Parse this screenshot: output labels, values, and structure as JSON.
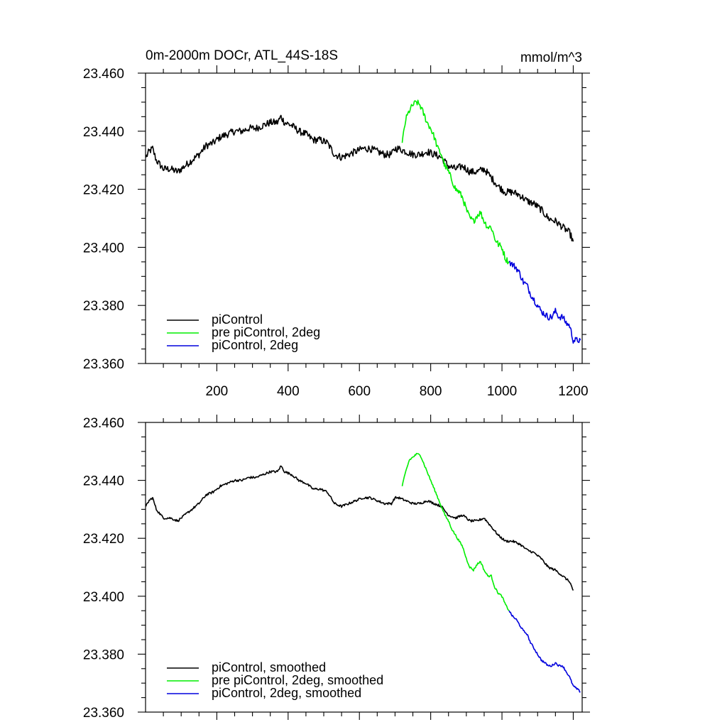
{
  "units": "mmol/m^3",
  "chart_data": [
    {
      "type": "line",
      "title": "0m-2000m DOCr, ATL_44S-18S",
      "units_label": "mmol/m^3",
      "xlabel": "",
      "ylabel": "",
      "xlim": [
        0,
        1225
      ],
      "ylim": [
        23.36,
        23.46
      ],
      "x_ticks": [
        200,
        400,
        600,
        800,
        1000,
        1200
      ],
      "x_tick_labels": [
        "200",
        "400",
        "600",
        "800",
        "1000",
        "1200"
      ],
      "y_ticks": [
        23.36,
        23.38,
        23.4,
        23.42,
        23.44,
        23.46
      ],
      "y_tick_labels": [
        "23.360",
        "23.380",
        "23.400",
        "23.420",
        "23.440",
        "23.460"
      ],
      "legend_position": "bottom-left",
      "series": [
        {
          "name": "piControl",
          "color": "#000000",
          "noise": 0.0025,
          "x": [
            1,
            10,
            20,
            30,
            50,
            70,
            90,
            110,
            130,
            150,
            170,
            190,
            210,
            230,
            250,
            270,
            290,
            310,
            330,
            350,
            370,
            380,
            390,
            410,
            430,
            450,
            470,
            490,
            510,
            530,
            550,
            570,
            590,
            610,
            630,
            650,
            670,
            690,
            700,
            710,
            730,
            750,
            770,
            790,
            810,
            830,
            850,
            870,
            890,
            910,
            930,
            950,
            970,
            990,
            1010,
            1030,
            1050,
            1070,
            1090,
            1110,
            1130,
            1150,
            1170,
            1190,
            1200
          ],
          "y": [
            23.431,
            23.433,
            23.434,
            23.43,
            23.427,
            23.427,
            23.426,
            23.428,
            23.43,
            23.432,
            23.435,
            23.436,
            23.438,
            23.439,
            23.44,
            23.44,
            23.441,
            23.441,
            23.442,
            23.443,
            23.443,
            23.445,
            23.443,
            23.442,
            23.44,
            23.439,
            23.437,
            23.437,
            23.436,
            23.432,
            23.431,
            23.432,
            23.433,
            23.434,
            23.434,
            23.433,
            23.432,
            23.432,
            23.434,
            23.434,
            23.433,
            23.432,
            23.432,
            23.433,
            23.432,
            23.431,
            23.428,
            23.427,
            23.428,
            23.426,
            23.426,
            23.427,
            23.424,
            23.421,
            23.419,
            23.419,
            23.418,
            23.416,
            23.415,
            23.413,
            23.41,
            23.409,
            23.407,
            23.405,
            23.402
          ]
        },
        {
          "name": "pre piControl, 2deg",
          "color": "#00ee00",
          "noise": 0.0022,
          "x": [
            720,
            730,
            740,
            750,
            760,
            770,
            780,
            790,
            800,
            810,
            820,
            830,
            840,
            850,
            860,
            870,
            880,
            890,
            900,
            910,
            920,
            930,
            940,
            950,
            960,
            970,
            980,
            990,
            1000,
            1010,
            1020
          ],
          "y": [
            23.436,
            23.444,
            23.447,
            23.449,
            23.45,
            23.449,
            23.446,
            23.443,
            23.441,
            23.438,
            23.434,
            23.432,
            23.428,
            23.426,
            23.423,
            23.42,
            23.419,
            23.417,
            23.413,
            23.41,
            23.409,
            23.411,
            23.412,
            23.409,
            23.407,
            23.407,
            23.403,
            23.401,
            23.4,
            23.396,
            23.395
          ]
        },
        {
          "name": "piControl, 2deg",
          "color": "#0000dd",
          "noise": 0.0022,
          "x": [
            1020,
            1030,
            1040,
            1050,
            1060,
            1070,
            1080,
            1090,
            1100,
            1110,
            1120,
            1130,
            1140,
            1150,
            1160,
            1170,
            1180,
            1190,
            1200,
            1210,
            1220
          ],
          "y": [
            23.395,
            23.394,
            23.393,
            23.391,
            23.388,
            23.387,
            23.384,
            23.382,
            23.38,
            23.378,
            23.377,
            23.376,
            23.376,
            23.378,
            23.376,
            23.376,
            23.374,
            23.373,
            23.368,
            23.368,
            23.368
          ]
        }
      ]
    },
    {
      "type": "line",
      "title": "",
      "xlabel": "",
      "ylabel": "",
      "xlim": [
        0,
        1225
      ],
      "ylim": [
        23.36,
        23.46
      ],
      "x_ticks": [
        200,
        400,
        600,
        800,
        1000,
        1200
      ],
      "y_ticks": [
        23.36,
        23.38,
        23.4,
        23.42,
        23.44,
        23.46
      ],
      "y_tick_labels": [
        "23.360",
        "23.380",
        "23.400",
        "23.420",
        "23.440",
        "23.460"
      ],
      "legend_position": "bottom-left",
      "series": [
        {
          "name": "piControl, smoothed",
          "color": "#000000",
          "noise": 0.0008,
          "x": [
            1,
            10,
            20,
            30,
            50,
            70,
            90,
            110,
            130,
            150,
            170,
            190,
            210,
            230,
            250,
            270,
            290,
            310,
            330,
            350,
            370,
            380,
            390,
            410,
            430,
            450,
            470,
            490,
            510,
            530,
            550,
            570,
            590,
            610,
            630,
            650,
            670,
            690,
            700,
            710,
            730,
            750,
            770,
            790,
            810,
            830,
            850,
            870,
            890,
            910,
            930,
            950,
            970,
            990,
            1010,
            1030,
            1050,
            1070,
            1090,
            1110,
            1130,
            1150,
            1170,
            1190,
            1200
          ],
          "y": [
            23.431,
            23.433,
            23.434,
            23.43,
            23.427,
            23.427,
            23.426,
            23.428,
            23.43,
            23.432,
            23.435,
            23.436,
            23.438,
            23.439,
            23.44,
            23.44,
            23.441,
            23.441,
            23.442,
            23.443,
            23.443,
            23.445,
            23.443,
            23.442,
            23.44,
            23.439,
            23.437,
            23.437,
            23.436,
            23.432,
            23.431,
            23.432,
            23.433,
            23.434,
            23.434,
            23.433,
            23.432,
            23.432,
            23.434,
            23.434,
            23.433,
            23.432,
            23.432,
            23.433,
            23.432,
            23.431,
            23.428,
            23.427,
            23.428,
            23.426,
            23.426,
            23.427,
            23.424,
            23.421,
            23.419,
            23.419,
            23.418,
            23.416,
            23.415,
            23.413,
            23.41,
            23.409,
            23.407,
            23.405,
            23.402
          ]
        },
        {
          "name": "pre piControl, 2deg, smoothed",
          "color": "#00ee00",
          "noise": 0.0007,
          "x": [
            720,
            730,
            740,
            750,
            760,
            770,
            780,
            790,
            800,
            810,
            820,
            830,
            840,
            850,
            860,
            870,
            880,
            890,
            900,
            910,
            920,
            930,
            940,
            950,
            960,
            970,
            980,
            990,
            1000,
            1010,
            1020
          ],
          "y": [
            23.438,
            23.443,
            23.447,
            23.448,
            23.449,
            23.449,
            23.446,
            23.443,
            23.44,
            23.437,
            23.434,
            23.431,
            23.428,
            23.426,
            23.423,
            23.421,
            23.419,
            23.417,
            23.413,
            23.41,
            23.409,
            23.411,
            23.412,
            23.409,
            23.407,
            23.407,
            23.403,
            23.401,
            23.4,
            23.397,
            23.395
          ]
        },
        {
          "name": "piControl, 2deg, smoothed",
          "color": "#0000dd",
          "noise": 0.0007,
          "x": [
            1020,
            1030,
            1040,
            1050,
            1060,
            1070,
            1080,
            1090,
            1100,
            1110,
            1120,
            1130,
            1140,
            1150,
            1160,
            1170,
            1180,
            1190,
            1200,
            1210,
            1220
          ],
          "y": [
            23.395,
            23.393,
            23.392,
            23.39,
            23.388,
            23.387,
            23.384,
            23.382,
            23.38,
            23.378,
            23.377,
            23.376,
            23.376,
            23.377,
            23.376,
            23.376,
            23.374,
            23.372,
            23.369,
            23.368,
            23.367
          ]
        }
      ]
    }
  ]
}
